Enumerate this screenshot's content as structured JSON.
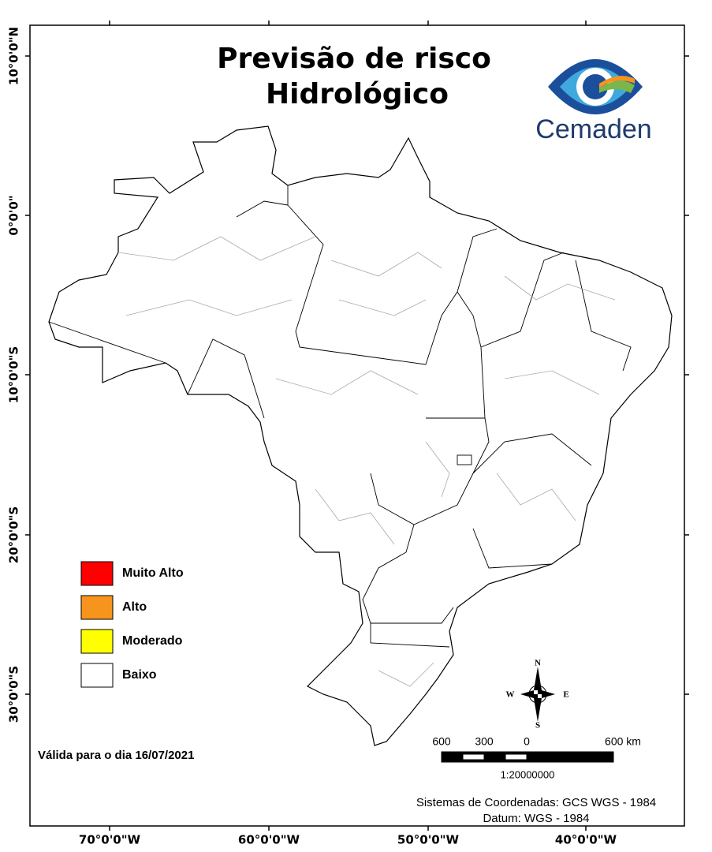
{
  "title_lines": [
    "Previsão de risco",
    "Hidrológico"
  ],
  "logo": "Cemaden",
  "legend": [
    {
      "label": "Muito Alto",
      "color": "#ff0000"
    },
    {
      "label": "Alto",
      "color": "#f7941d"
    },
    {
      "label": "Moderado",
      "color": "#ffff00"
    },
    {
      "label": "Baixo",
      "color": "#ffffff"
    }
  ],
  "valid_date": "Válida para o dia 16/07/2021",
  "scale": {
    "labels": [
      "600",
      "300",
      "0",
      "600 km"
    ],
    "ratio": "1:20000000"
  },
  "compass": {
    "n": "N",
    "s": "S",
    "e": "E",
    "w": "W"
  },
  "coordinate_system": "Sistemas de Coordenadas: GCS WGS - 1984",
  "datum": "Datum: WGS - 1984",
  "lat_labels": [
    "10°0'0\"N",
    "0°0'0\"",
    "10°0'0\"S",
    "20°0'0\"S",
    "30°0'0\"S"
  ],
  "lon_labels": [
    "70°0'0\"W",
    "60°0'0\"W",
    "50°0'0\"W",
    "40°0'0\"W"
  ]
}
